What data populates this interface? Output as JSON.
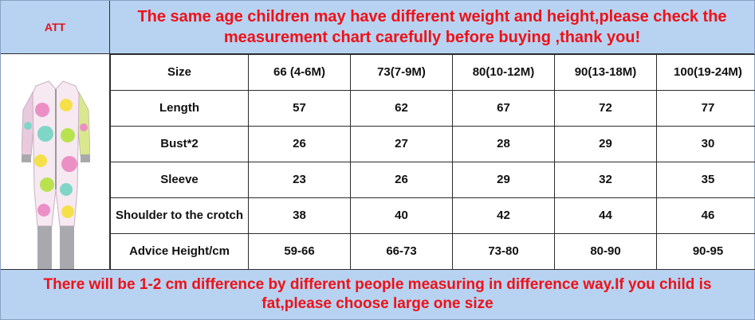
{
  "header": {
    "brand": "ATT",
    "message": "The same age children may have different weight and height,please check the measurement chart carefully before buying ,thank you!"
  },
  "table": {
    "rows": [
      {
        "label": "Size",
        "cells": [
          "66 (4-6M)",
          "73(7-9M)",
          "80(10-12M)",
          "90(13-18M)",
          "100(19-24M)"
        ]
      },
      {
        "label": "Length",
        "cells": [
          "57",
          "62",
          "67",
          "72",
          "77"
        ]
      },
      {
        "label": "Bust*2",
        "cells": [
          "26",
          "27",
          "28",
          "29",
          "30"
        ]
      },
      {
        "label": "Sleeve",
        "cells": [
          "23",
          "26",
          "29",
          "32",
          "35"
        ]
      },
      {
        "label": "Shoulder to the crotch",
        "cells": [
          "38",
          "40",
          "42",
          "44",
          "46"
        ]
      },
      {
        "label": "Advice Height/cm",
        "cells": [
          "59-66",
          "66-73",
          "73-80",
          "80-90",
          "90-95"
        ]
      }
    ]
  },
  "footer": {
    "note": "There will be 1-2 cm difference by different people measuring in difference way.If you child is fat,please choose large one size"
  },
  "colors": {
    "banner_bg": "#b7d3f1",
    "banner_text": "#ee1118",
    "grid": "#2c2c2c"
  }
}
